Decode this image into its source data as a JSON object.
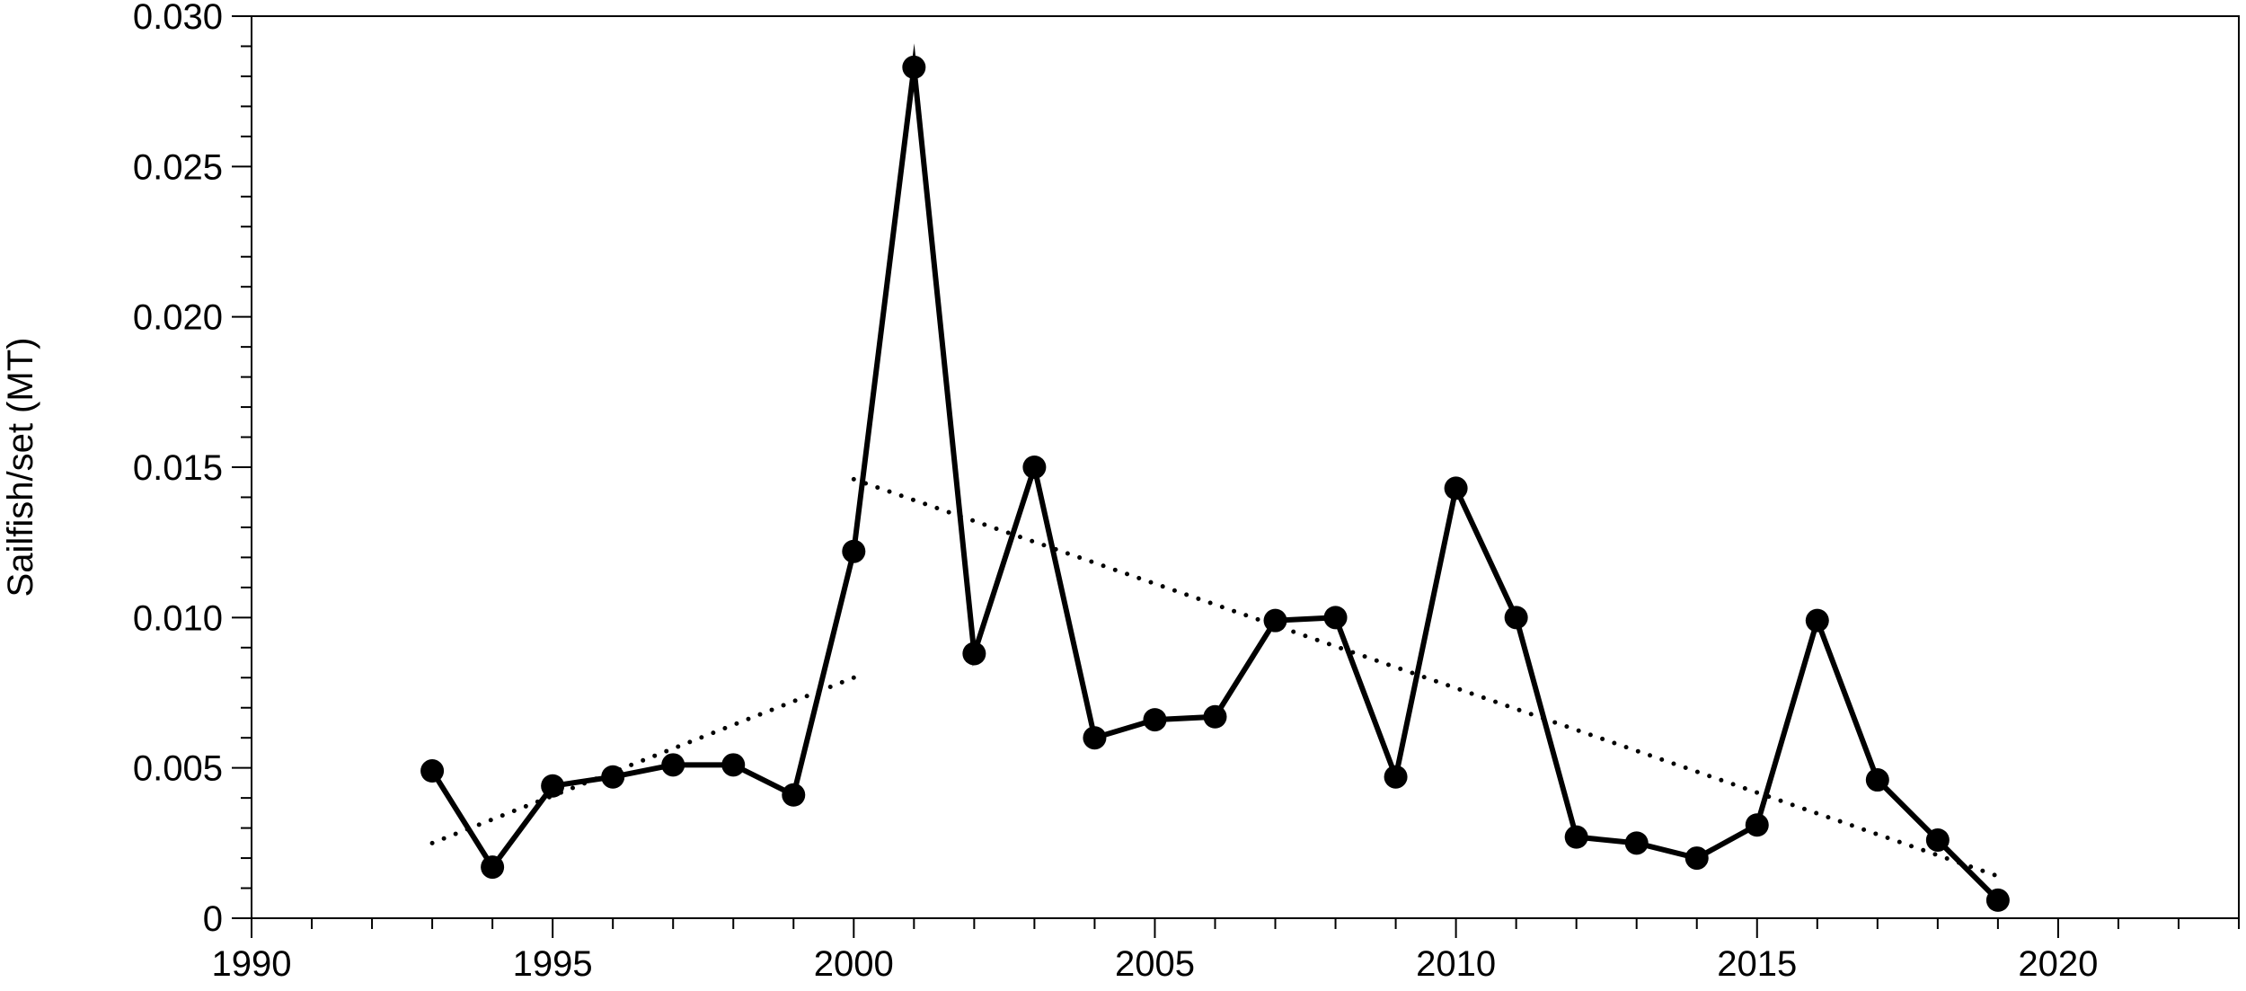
{
  "chart_data": {
    "type": "line",
    "title": "",
    "xlabel": "",
    "ylabel": "Sailfish/set (MT)",
    "xlim": [
      1990,
      2023
    ],
    "ylim": [
      0,
      0.03
    ],
    "x_ticks": [
      "1990",
      "1995",
      "2000",
      "2005",
      "2010",
      "2015",
      "2020"
    ],
    "y_ticks": [
      "0",
      "0.005",
      "0.010",
      "0.015",
      "0.020",
      "0.025",
      "0.030"
    ],
    "grid": false,
    "series": [
      {
        "style": "solid-with-markers",
        "x": [
          1993,
          1994,
          1995,
          1996,
          1997,
          1998,
          1999,
          2000,
          2001,
          2002,
          2003,
          2004,
          2005,
          2006,
          2007,
          2008,
          2009,
          2010,
          2011,
          2012,
          2013,
          2014,
          2015,
          2016,
          2017,
          2018,
          2019
        ],
        "values": [
          0.0049,
          0.0017,
          0.0044,
          0.0047,
          0.0051,
          0.0051,
          0.0041,
          0.0122,
          0.0283,
          0.0088,
          0.015,
          0.006,
          0.0066,
          0.0067,
          0.0099,
          0.01,
          0.0047,
          0.0143,
          0.01,
          0.0027,
          0.0025,
          0.002,
          0.0031,
          0.0099,
          0.0046,
          0.0026,
          0.0006
        ]
      }
    ],
    "trend_lines": [
      {
        "style": "dotted",
        "x": [
          1993,
          2000
        ],
        "values": [
          0.0025,
          0.008
        ]
      },
      {
        "style": "dotted",
        "x": [
          2000,
          2019
        ],
        "values": [
          0.0146,
          0.0014
        ]
      }
    ],
    "colors": {
      "line": "#000000",
      "marker": "#000000",
      "axis": "#000000"
    }
  }
}
